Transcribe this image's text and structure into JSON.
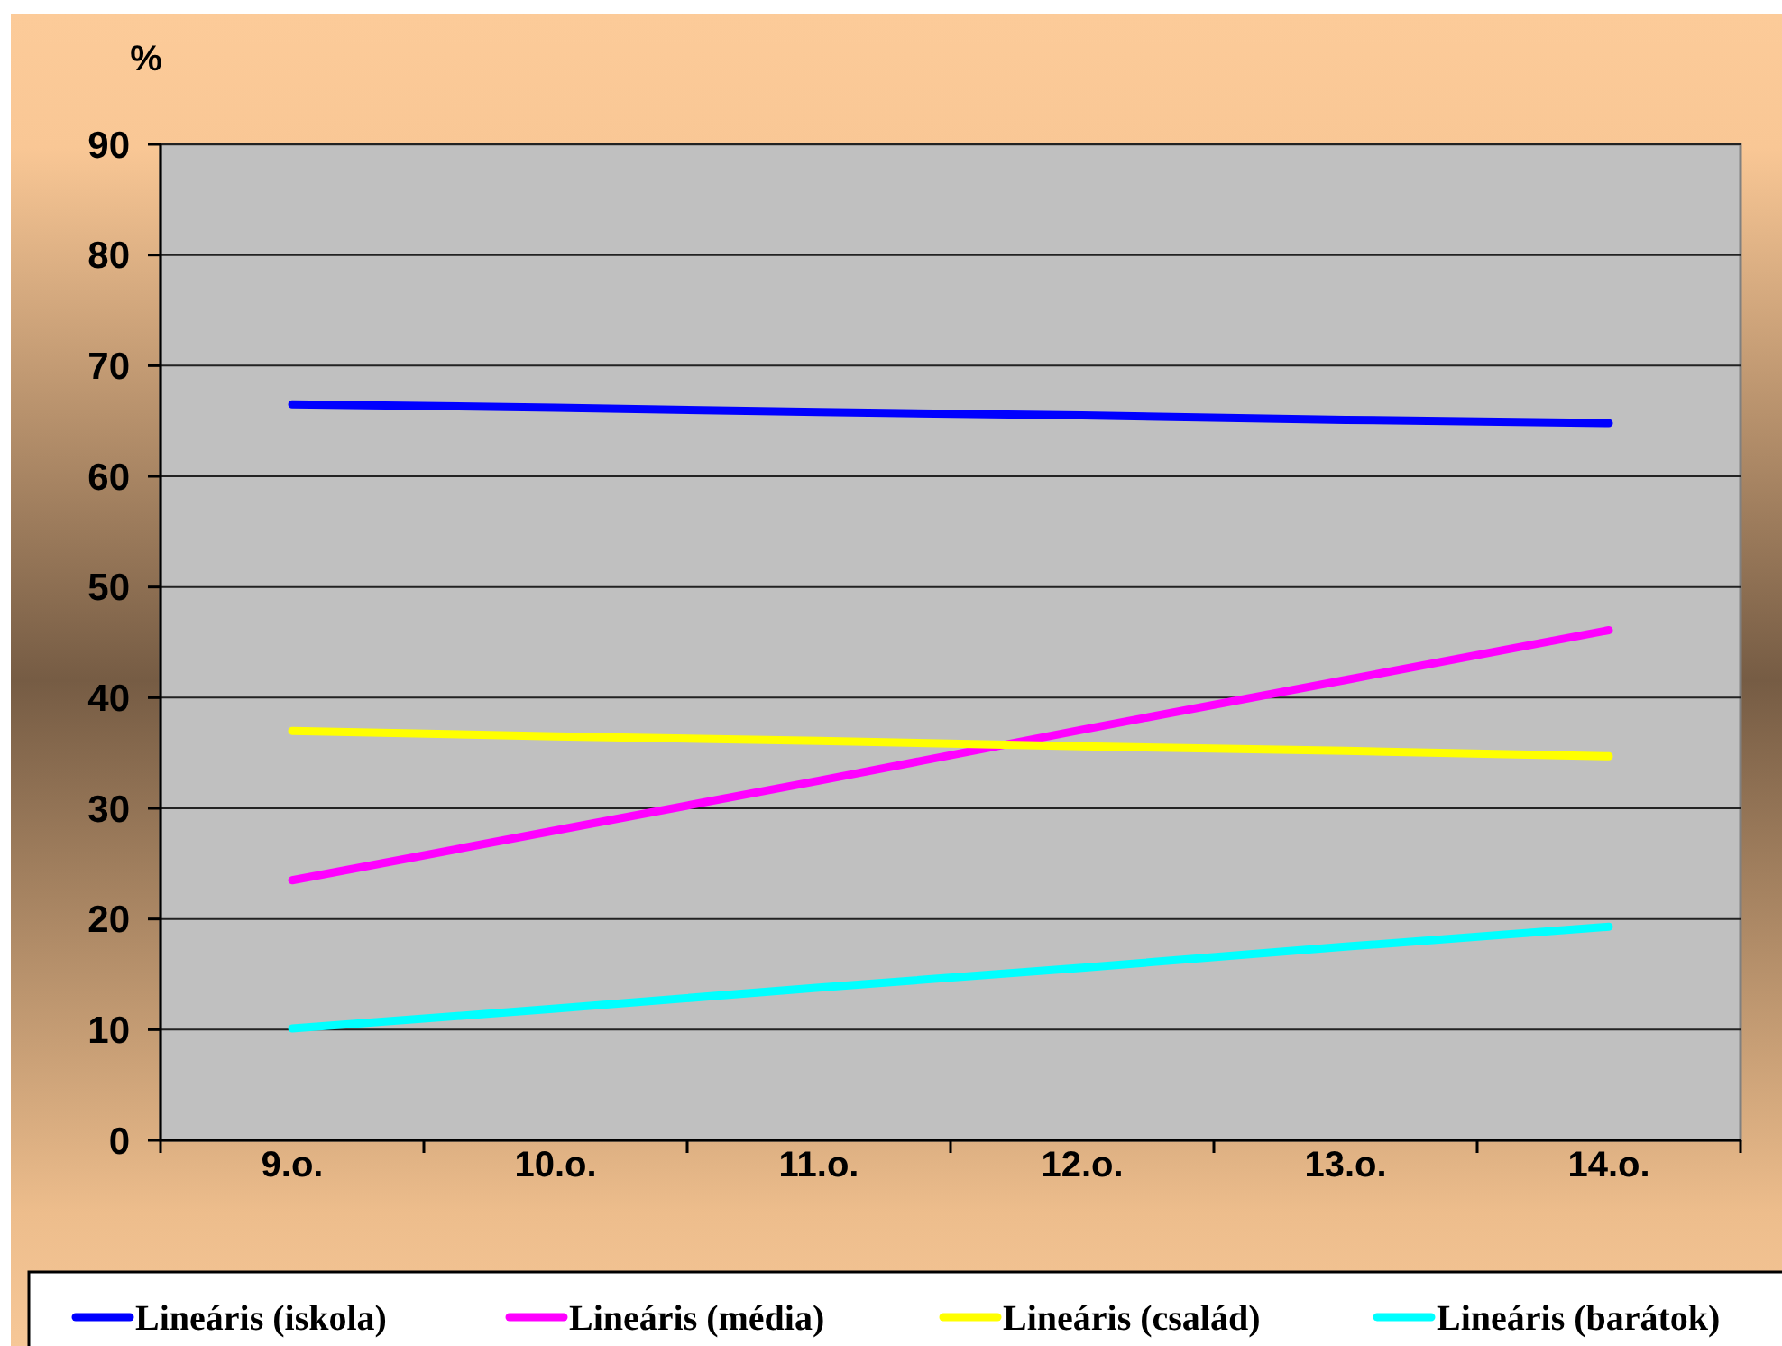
{
  "chart_data": {
    "type": "line",
    "ylabel": "%",
    "categories": [
      "9.o.",
      "10.o.",
      "11.o.",
      "12.o.",
      "13.o.",
      "14.o."
    ],
    "series": [
      {
        "name": "Lineáris (iskola)",
        "color": "#0000ff",
        "values": [
          66.5,
          66.2,
          65.8,
          65.5,
          65.1,
          64.8
        ]
      },
      {
        "name": "Lineáris (média)",
        "color": "#ff00ff",
        "values": [
          23.5,
          28.0,
          32.5,
          37.1,
          41.6,
          46.1
        ]
      },
      {
        "name": "Lineáris (család)",
        "color": "#ffff00",
        "values": [
          37.0,
          36.5,
          36.1,
          35.6,
          35.2,
          34.7
        ]
      },
      {
        "name": "Lineáris (barátok)",
        "color": "#00ffff",
        "values": [
          10.1,
          11.9,
          13.8,
          15.6,
          17.5,
          19.3
        ]
      }
    ],
    "ylim": [
      0,
      90
    ],
    "yticks": [
      0,
      10,
      20,
      30,
      40,
      50,
      60,
      70,
      80,
      90
    ],
    "grid": "y",
    "legend": "bottom"
  }
}
